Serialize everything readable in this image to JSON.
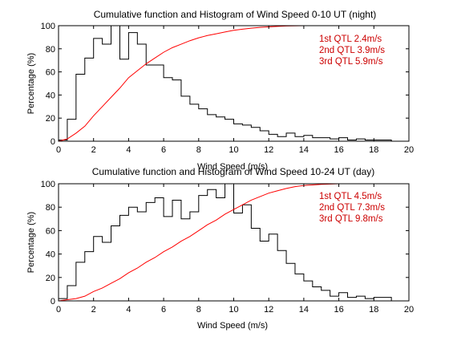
{
  "colors": {
    "histogram": "#000000",
    "cumulative": "#ff0000",
    "quartile_text": "#cc0000"
  },
  "chart_data": [
    {
      "type": "line",
      "title": "Cumulative function and Histogram of Wind Speed 0-10 UT (night)",
      "xlabel": "Wind Speed (m/s)",
      "ylabel": "Percentage (%)",
      "xlim": [
        0,
        20
      ],
      "ylim": [
        0,
        100
      ],
      "xticks": [
        0,
        2,
        4,
        6,
        8,
        10,
        12,
        14,
        16,
        18,
        20
      ],
      "yticks": [
        0,
        20,
        40,
        60,
        80,
        100
      ],
      "grid": false,
      "quartiles": [
        "1st QTL 2.4m/s",
        "2nd QTL 3.9m/s",
        "3rd QTL 5.9m/s"
      ],
      "series": [
        {
          "type": "histogram-stairs",
          "bin_width": 0.5,
          "x_start": 0,
          "values": [
            1,
            19,
            58,
            72,
            89,
            84,
            100,
            71,
            94,
            84,
            66,
            66,
            55,
            53,
            39,
            32,
            28,
            23,
            21,
            19,
            15,
            14,
            12,
            9,
            6,
            4,
            7,
            4,
            5,
            3,
            3,
            2,
            3,
            1,
            2,
            1,
            1,
            1,
            0,
            0
          ]
        },
        {
          "type": "cumulative",
          "x": [
            0,
            0.5,
            1,
            1.5,
            2,
            2.5,
            3,
            3.5,
            4,
            4.5,
            5,
            5.5,
            6,
            6.5,
            7,
            7.5,
            8,
            8.5,
            9,
            9.5,
            10,
            10.5,
            11,
            11.5,
            12,
            12.5,
            13,
            14,
            15,
            16,
            18,
            20
          ],
          "y": [
            0,
            2,
            7,
            13,
            22,
            30,
            38,
            46,
            55,
            61,
            67,
            72,
            77,
            81,
            84,
            87,
            89.5,
            91.5,
            93,
            94.5,
            96,
            97,
            97.8,
            98.5,
            99,
            99.4,
            99.7,
            100,
            100,
            100,
            100,
            100
          ]
        }
      ]
    },
    {
      "type": "line",
      "title": "Cumulative function and Histogram of Wind Speed 10-24 UT (day)",
      "xlabel": "Wind Speed (m/s)",
      "ylabel": "Percentage (%)",
      "xlim": [
        0,
        20
      ],
      "ylim": [
        0,
        100
      ],
      "xticks": [
        0,
        2,
        4,
        6,
        8,
        10,
        12,
        14,
        16,
        18,
        20
      ],
      "yticks": [
        0,
        20,
        40,
        60,
        80,
        100
      ],
      "grid": false,
      "quartiles": [
        "1st QTL 4.5m/s",
        "2nd QTL 7.3m/s",
        "3rd QTL 9.8m/s"
      ],
      "series": [
        {
          "type": "histogram-stairs",
          "bin_width": 0.5,
          "x_start": 0,
          "values": [
            2,
            13,
            33,
            42,
            55,
            50,
            64,
            73,
            80,
            76,
            84,
            88,
            72,
            86,
            70,
            76,
            90,
            95,
            88,
            100,
            75,
            82,
            62,
            51,
            57,
            43,
            32,
            23,
            17,
            12,
            9,
            4,
            7,
            3,
            4,
            2,
            3,
            3,
            0,
            0
          ]
        },
        {
          "type": "cumulative",
          "x": [
            0,
            0.5,
            1,
            1.5,
            2,
            2.5,
            3,
            3.5,
            4,
            4.5,
            5,
            5.5,
            6,
            6.5,
            7,
            7.5,
            8,
            8.5,
            9,
            9.5,
            10,
            10.5,
            11,
            11.5,
            12,
            12.5,
            13,
            13.5,
            14,
            14.5,
            15,
            16,
            17,
            18,
            20
          ],
          "y": [
            0,
            1,
            2,
            4,
            8,
            11,
            15,
            19,
            24,
            28,
            33,
            37,
            42,
            46,
            51,
            55,
            60,
            65,
            69,
            74,
            78,
            82,
            86,
            89,
            92,
            94,
            96,
            97.5,
            98.5,
            99,
            99.5,
            100,
            100,
            100,
            100
          ]
        }
      ]
    }
  ]
}
